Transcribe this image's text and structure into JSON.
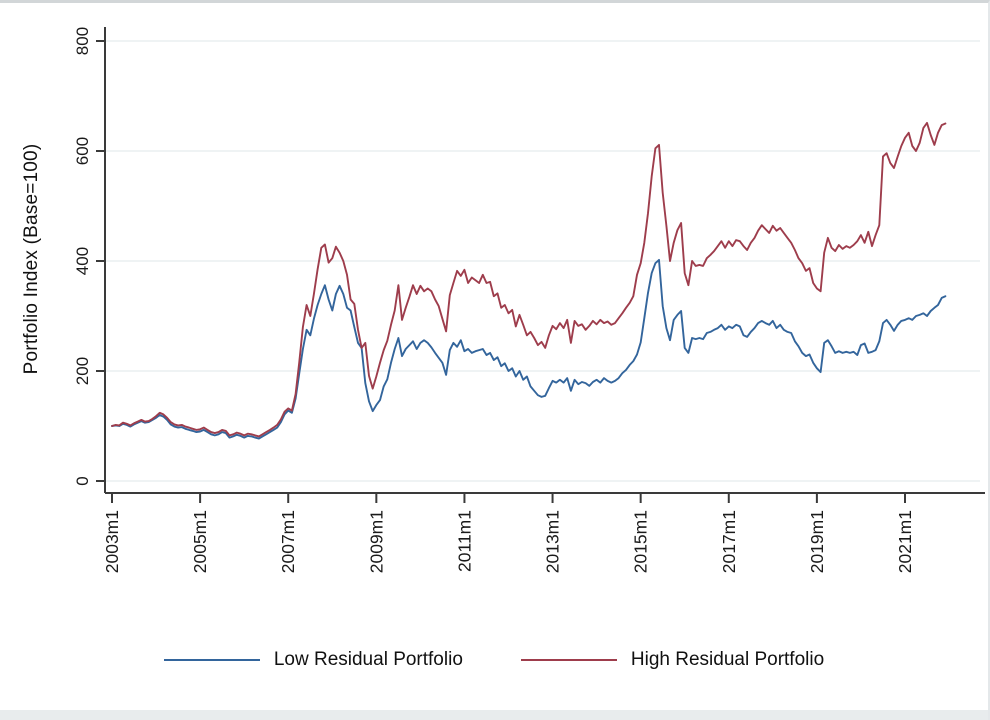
{
  "figure": {
    "y_axis_title": "Portfolio Index (Base=100)",
    "legend": [
      {
        "label": "Low Residual Portfolio",
        "color": "#33659c"
      },
      {
        "label": "High Residual Portfolio",
        "color": "#9e3d4c"
      }
    ],
    "colors": {
      "low_series": "#33659c",
      "high_series": "#9e3d4c",
      "axis": "#3a3a3a",
      "gridline": "#eaeff1",
      "background": "#ffffff"
    }
  },
  "chart_data": {
    "type": "line",
    "title": "",
    "xlabel": "",
    "ylabel": "Portfolio Index (Base=100)",
    "x_unit": "month",
    "x_start": "2003m1",
    "x_end": "2021m12",
    "n_points": 228,
    "x_tick_labels": [
      "2003m1",
      "2005m1",
      "2007m1",
      "2009m1",
      "2011m1",
      "2013m1",
      "2015m1",
      "2017m1",
      "2019m1",
      "2021m1"
    ],
    "x_tick_month_index": [
      0,
      24,
      48,
      72,
      96,
      120,
      144,
      168,
      192,
      216
    ],
    "y_ticks": [
      0,
      200,
      400,
      600,
      800
    ],
    "ylim": [
      0,
      800
    ],
    "grid": "horizontal",
    "legend_position": "bottom",
    "series": [
      {
        "name": "Low Residual Portfolio",
        "color": "#33659c",
        "values": [
          100,
          101,
          100,
          104,
          102,
          99,
          103,
          106,
          109,
          106,
          107,
          111,
          115,
          120,
          117,
          111,
          103,
          99,
          97,
          98,
          95,
          93,
          91,
          89,
          90,
          93,
          89,
          85,
          83,
          85,
          89,
          87,
          79,
          81,
          84,
          82,
          79,
          82,
          81,
          79,
          77,
          81,
          85,
          89,
          93,
          97,
          107,
          121,
          128,
          124,
          150,
          195,
          240,
          275,
          265,
          295,
          320,
          340,
          356,
          330,
          310,
          340,
          355,
          340,
          315,
          310,
          280,
          251,
          242,
          178,
          145,
          127,
          138,
          147,
          172,
          185,
          215,
          240,
          260,
          227,
          240,
          247,
          254,
          240,
          251,
          256,
          251,
          243,
          233,
          224,
          215,
          193,
          238,
          251,
          244,
          256,
          236,
          240,
          233,
          236,
          238,
          240,
          229,
          233,
          220,
          225,
          209,
          214,
          200,
          205,
          190,
          200,
          184,
          190,
          172,
          164,
          156,
          153,
          155,
          169,
          182,
          179,
          184,
          179,
          187,
          164,
          184,
          176,
          180,
          178,
          173,
          180,
          184,
          179,
          187,
          182,
          179,
          182,
          187,
          196,
          202,
          211,
          218,
          230,
          252,
          296,
          342,
          378,
          396,
          402,
          318,
          278,
          256,
          293,
          302,
          309,
          242,
          233,
          260,
          258,
          260,
          258,
          269,
          271,
          275,
          278,
          284,
          275,
          281,
          278,
          284,
          281,
          265,
          262,
          271,
          278,
          287,
          291,
          287,
          284,
          291,
          278,
          284,
          275,
          271,
          269,
          254,
          245,
          233,
          227,
          230,
          215,
          205,
          198,
          251,
          256,
          245,
          233,
          236,
          233,
          235,
          233,
          235,
          229,
          247,
          250,
          233,
          235,
          238,
          254,
          287,
          293,
          284,
          273,
          284,
          291,
          293,
          296,
          293,
          300,
          302,
          305,
          300,
          309,
          315,
          320,
          333,
          336
        ]
      },
      {
        "name": "High Residual Portfolio",
        "color": "#9e3d4c",
        "values": [
          100,
          102,
          101,
          106,
          104,
          101,
          105,
          108,
          111,
          108,
          109,
          113,
          118,
          124,
          121,
          115,
          107,
          103,
          101,
          102,
          99,
          97,
          95,
          93,
          94,
          97,
          93,
          89,
          87,
          89,
          93,
          91,
          83,
          85,
          88,
          86,
          83,
          86,
          85,
          83,
          81,
          85,
          89,
          93,
          97,
          102,
          112,
          126,
          132,
          128,
          158,
          215,
          280,
          320,
          300,
          340,
          385,
          424,
          430,
          397,
          405,
          426,
          415,
          400,
          375,
          330,
          322,
          275,
          242,
          251,
          191,
          168,
          190,
          215,
          238,
          255,
          284,
          310,
          356,
          293,
          315,
          335,
          356,
          340,
          355,
          345,
          350,
          345,
          330,
          318,
          295,
          272,
          338,
          360,
          382,
          373,
          384,
          360,
          370,
          365,
          360,
          375,
          360,
          362,
          336,
          341,
          315,
          320,
          305,
          311,
          281,
          302,
          284,
          265,
          271,
          260,
          247,
          253,
          242,
          265,
          282,
          276,
          287,
          278,
          293,
          251,
          291,
          282,
          285,
          275,
          282,
          291,
          285,
          293,
          287,
          290,
          284,
          287,
          296,
          305,
          315,
          324,
          336,
          375,
          396,
          433,
          487,
          554,
          605,
          611,
          524,
          464,
          400,
          433,
          456,
          469,
          378,
          356,
          400,
          391,
          393,
          391,
          405,
          411,
          418,
          427,
          436,
          424,
          436,
          427,
          438,
          436,
          427,
          420,
          433,
          442,
          455,
          465,
          458,
          451,
          464,
          455,
          460,
          451,
          442,
          433,
          420,
          405,
          396,
          382,
          387,
          360,
          350,
          345,
          415,
          442,
          424,
          418,
          429,
          422,
          427,
          424,
          429,
          436,
          447,
          433,
          453,
          427,
          447,
          465,
          590,
          596,
          578,
          569,
          590,
          609,
          624,
          633,
          609,
          600,
          615,
          642,
          651,
          629,
          611,
          633,
          647,
          650
        ]
      }
    ]
  }
}
